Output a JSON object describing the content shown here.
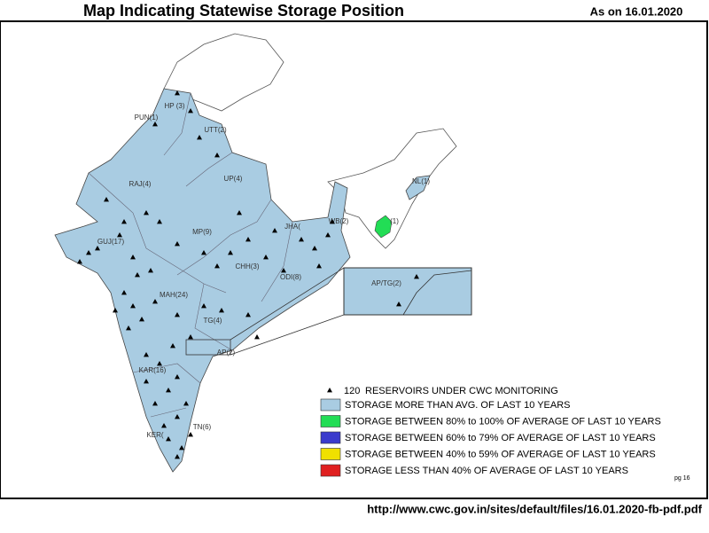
{
  "header": {
    "title": "Map Indicating Statewise Storage Position",
    "date": "As on 16.01.2020"
  },
  "map": {
    "fill": "#a9cce2",
    "state_labels": [
      "HP (3)",
      "PUN(1)",
      "UTT(2)",
      "RAJ(4)",
      "UP(4)",
      "NL(1)",
      "WB(2)",
      "JHA(",
      "(1)",
      "GUJ(17)",
      "MP(9)",
      "CHH(3)",
      "ODI(8)",
      "MAH(24)",
      "TG(4)",
      "AP(2)",
      "KAR(16)",
      "TN(6)",
      "KER("
    ],
    "inset_label": "AP/TG(2)"
  },
  "legend": {
    "count": "120",
    "marker_label": "RESERVOIRS UNDER CWC MONITORING",
    "items": [
      {
        "label": "STORAGE MORE THAN AVG. OF LAST 10 YEARS",
        "color": "#a9cce2"
      },
      {
        "label": "STORAGE BETWEEN 80% to 100% OF AVERAGE OF LAST 10 YEARS",
        "color": "#22dd55"
      },
      {
        "label": "STORAGE BETWEEN 60% to 79% OF AVERAGE OF LAST 10 YEARS",
        "color": "#3b3bcc"
      },
      {
        "label": "STORAGE BETWEEN 40% to 59% OF AVERAGE OF LAST 10 YEARS",
        "color": "#f0e000"
      },
      {
        "label": "STORAGE LESS THAN 40% OF AVERAGE OF LAST 10 YEARS",
        "color": "#e02020"
      }
    ]
  },
  "footer": {
    "page_number": "pg 16",
    "source_url": "http://www.cwc.gov.in/sites/default/files/16.01.2020-fb-pdf.pdf"
  }
}
